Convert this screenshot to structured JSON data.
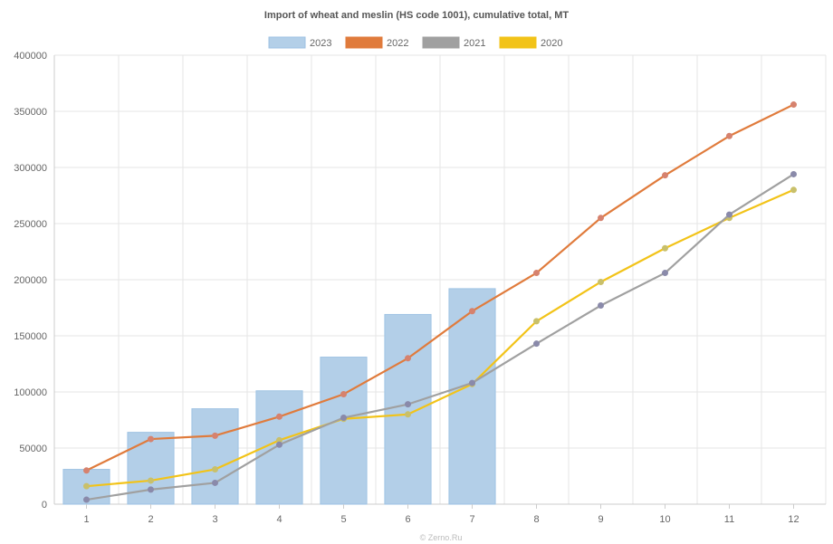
{
  "chart_data": {
    "type": "bar",
    "title": "Import of wheat and meslin (HS code 1001), cumulative total, MT",
    "watermark": "© Zerno.Ru",
    "categories": [
      "1",
      "2",
      "3",
      "4",
      "5",
      "6",
      "7",
      "8",
      "9",
      "10",
      "11",
      "12"
    ],
    "ylim": [
      0,
      400000
    ],
    "yticks": [
      0,
      50000,
      100000,
      150000,
      200000,
      250000,
      300000,
      350000,
      400000
    ],
    "ytick_labels": [
      "0",
      "50000",
      "100000",
      "150000",
      "200000",
      "250000",
      "300000",
      "350000",
      "400000"
    ],
    "grid": true,
    "legend_position": "top-center",
    "series": [
      {
        "name": "2023",
        "kind": "bar",
        "color": "#b3cfe8",
        "border": "#9ec2e3",
        "values": [
          31000,
          64000,
          85000,
          101000,
          131000,
          169000,
          192000,
          null,
          null,
          null,
          null,
          null
        ]
      },
      {
        "name": "2022",
        "kind": "line",
        "color": "#e07b3c",
        "marker": "#d6826e",
        "values": [
          30000,
          58000,
          61000,
          78000,
          98000,
          130000,
          172000,
          206000,
          255000,
          293000,
          328000,
          356000
        ]
      },
      {
        "name": "2021",
        "kind": "line",
        "color": "#a0a0a0",
        "marker": "#8a8aaa",
        "values": [
          4000,
          13000,
          19000,
          53000,
          77000,
          89000,
          108000,
          143000,
          177000,
          206000,
          258000,
          294000
        ]
      },
      {
        "name": "2020",
        "kind": "line",
        "color": "#f2c318",
        "marker": "#c9c06a",
        "values": [
          16000,
          21000,
          31000,
          57000,
          76000,
          80000,
          107000,
          163000,
          198000,
          228000,
          255000,
          280000
        ]
      }
    ]
  }
}
